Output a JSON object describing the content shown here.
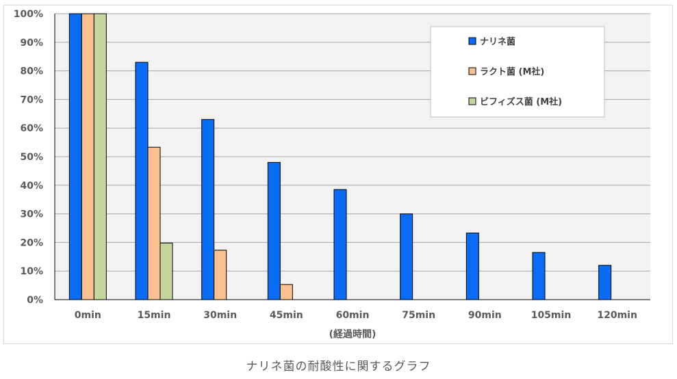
{
  "caption": "ナリネ菌の耐酸性に関するグラフ",
  "chart_data": {
    "type": "bar",
    "title": "",
    "xlabel": "(経過時間)",
    "ylabel": "",
    "ylim": [
      0,
      100
    ],
    "y_ticks": [
      "0%",
      "10%",
      "20%",
      "30%",
      "40%",
      "50%",
      "60%",
      "70%",
      "80%",
      "90%",
      "100%"
    ],
    "categories": [
      "0min",
      "15min",
      "30min",
      "45min",
      "60min",
      "75min",
      "90min",
      "105min",
      "120min"
    ],
    "series": [
      {
        "name": "ナリネ菌",
        "color": "#0a6cf5",
        "values": [
          100,
          83,
          63,
          48,
          38.5,
          30,
          23.3,
          16.5,
          12
        ]
      },
      {
        "name": "ラクト菌 (M社)",
        "color": "#fac090",
        "values": [
          100,
          53.3,
          17.3,
          5.3,
          null,
          null,
          null,
          null,
          null
        ]
      },
      {
        "name": "ビフィズス菌 (M社)",
        "color": "#c3d69b",
        "values": [
          100,
          19.8,
          null,
          null,
          null,
          null,
          null,
          null,
          null
        ]
      }
    ],
    "grid": true,
    "plot_background": "#f2f2f2",
    "legend_position": "top-right"
  }
}
